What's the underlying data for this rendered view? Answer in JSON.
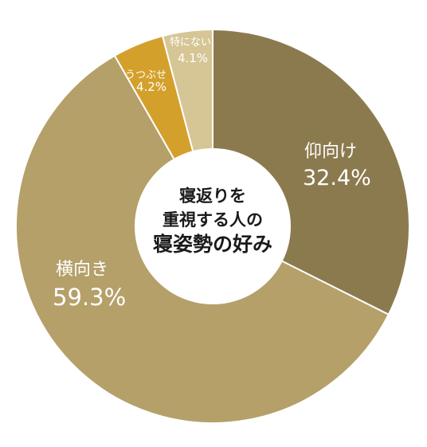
{
  "chart_data": {
    "type": "pie",
    "variant": "donut",
    "center_title": [
      "寝返りを",
      "重視する人の",
      "寝姿勢の好み"
    ],
    "slices": [
      {
        "name": "仰向け",
        "value": 32.4,
        "value_label": "32.4%",
        "color": "#8c7a4f"
      },
      {
        "name": "横向き",
        "value": 59.3,
        "value_label": "59.3%",
        "color": "#b5a06a"
      },
      {
        "name": "うつぶせ",
        "value": 4.2,
        "value_label": "4.2%",
        "color": "#d4a02c"
      },
      {
        "name": "特にない",
        "value": 4.1,
        "value_label": "4.1%",
        "color": "#d6c695"
      }
    ],
    "start": "top",
    "direction": "clockwise",
    "legend": "none"
  }
}
